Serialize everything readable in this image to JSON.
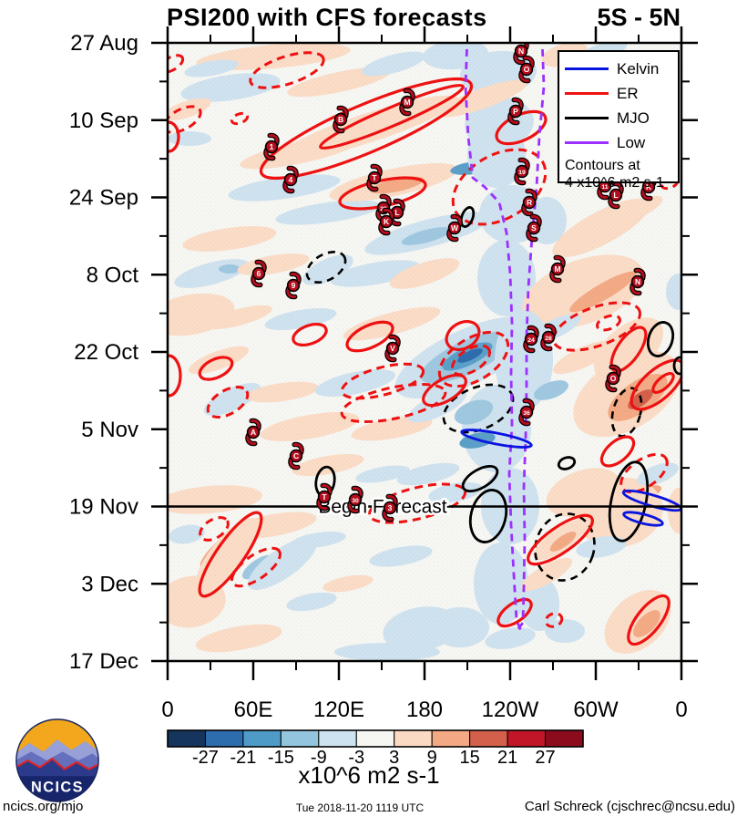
{
  "title": "PSI200 with CFS forecasts",
  "subtitle": "5S - 5N",
  "legend": {
    "items": [
      {
        "label": "Kelvin",
        "color": "#0a14e0"
      },
      {
        "label": "ER",
        "color": "#ee1111"
      },
      {
        "label": "MJO",
        "color": "#000000"
      },
      {
        "label": "Low",
        "color": "#9b30ff"
      }
    ],
    "note_line1": "Contours at",
    "note_line2": "4 x10^6 m2 s-1"
  },
  "footer": {
    "left": "ncics.org/mjo",
    "center": "Tue 2018-11-20 1119 UTC",
    "right": "Carl Schreck (cjschrec@ncsu.edu)"
  },
  "logo": {
    "text": "NCICS"
  },
  "chart_data": {
    "type": "heatmap",
    "title": "PSI200 with CFS forecasts",
    "subtitle": "5S - 5N",
    "description": "Hovmoller (time-longitude) diagram of 200-hPa streamfunction anomalies averaged 5S-5N, with CFS forecasts below the Begin Forecast line and wave/contour overlays",
    "x_axis": {
      "labels": [
        "0",
        "60E",
        "120E",
        "180",
        "120W",
        "60W",
        "0"
      ],
      "minor_tick_deg": 30
    },
    "y_axis": {
      "labels": [
        "27 Aug",
        "10 Sep",
        "24 Sep",
        "8 Oct",
        "22 Oct",
        "5 Nov",
        "19 Nov",
        "3 Dec",
        "17 Dec"
      ],
      "minor_tick_days": 7
    },
    "colorbar": {
      "tick_labels": [
        "-27",
        "-21",
        "-15",
        "-9",
        "-3",
        "3",
        "9",
        "15",
        "21",
        "27"
      ],
      "units": "x10^6 m2 s-1",
      "colors": [
        "#16355e",
        "#2d6cad",
        "#4f9bc7",
        "#93c6de",
        "#cde3f0",
        "#f6f6f3",
        "#fbdac3",
        "#f3a983",
        "#d2604b",
        "#c11627",
        "#8c0c1e"
      ]
    },
    "styles": {
      "kelvin": "#0a14e0",
      "er": "#ee1111",
      "mjo": "#000000",
      "low": "#9b30ff",
      "cyclone_fill": "#b50d1d",
      "background": "#f6f6f3",
      "contour_note": "Contours at 4 x10^6 m2 s-1"
    },
    "palette": {
      "-4": "#2d6cad",
      "-3": "#5b9fc9",
      "-2": "#9fc8e0",
      "-1": "#cfe2ef",
      "1": "#fbdcc6",
      "2": "#f3aa85",
      "3": "#d2604b",
      "4": "#c11627"
    },
    "annotations": {
      "begin_forecast": {
        "label": "Begin Forecast",
        "date": "19 Nov"
      }
    },
    "shaded_blobs": [
      [
        300,
        62,
        85,
        13,
        -5,
        1
      ],
      [
        253,
        96,
        55,
        14,
        -8,
        -1
      ],
      [
        372,
        90,
        58,
        11,
        -12,
        1
      ],
      [
        432,
        70,
        36,
        10,
        -15,
        -1
      ],
      [
        500,
        60,
        36,
        16,
        -5,
        -1
      ],
      [
        547,
        80,
        42,
        24,
        -5,
        -1
      ],
      [
        548,
        135,
        38,
        28,
        -8,
        -1
      ],
      [
        620,
        60,
        26,
        12,
        -15,
        1
      ],
      [
        660,
        58,
        30,
        10,
        -20,
        -1
      ],
      [
        205,
        120,
        28,
        9,
        -18,
        1
      ],
      [
        208,
        152,
        24,
        8,
        0,
        -1
      ],
      [
        405,
        140,
        103,
        16,
        -18,
        1
      ],
      [
        530,
        108,
        52,
        11,
        -20,
        1
      ],
      [
        232,
        75,
        30,
        8,
        -10,
        -1
      ],
      [
        330,
        167,
        68,
        12,
        -12,
        1
      ],
      [
        312,
        206,
        62,
        12,
        -8,
        -1
      ],
      [
        360,
        233,
        58,
        11,
        -8,
        -1
      ],
      [
        432,
        200,
        72,
        15,
        -12,
        1
      ],
      [
        436,
        203,
        30,
        7,
        -12,
        2
      ],
      [
        470,
        256,
        72,
        15,
        -15,
        -1
      ],
      [
        468,
        259,
        28,
        7,
        -15,
        -2
      ],
      [
        252,
        262,
        52,
        12,
        -8,
        1
      ],
      [
        520,
        184,
        26,
        7,
        -8,
        -3
      ],
      [
        545,
        170,
        32,
        36,
        0,
        -1
      ],
      [
        562,
        235,
        36,
        32,
        0,
        -1
      ],
      [
        600,
        242,
        22,
        26,
        0,
        -1
      ],
      [
        660,
        250,
        60,
        18,
        -28,
        1
      ],
      [
        700,
        230,
        30,
        9,
        -25,
        1
      ],
      [
        232,
        300,
        42,
        12,
        -15,
        -1
      ],
      [
        252,
        295,
        12,
        5,
        0,
        -2
      ],
      [
        300,
        290,
        40,
        10,
        -10,
        1
      ],
      [
        360,
        296,
        30,
        12,
        -25,
        -1
      ],
      [
        412,
        300,
        50,
        12,
        -10,
        -1
      ],
      [
        466,
        300,
        40,
        12,
        -18,
        1
      ],
      [
        556,
        305,
        32,
        42,
        0,
        -1
      ],
      [
        640,
        320,
        70,
        35,
        -20,
        1
      ],
      [
        662,
        320,
        42,
        9,
        -30,
        2
      ],
      [
        610,
        360,
        30,
        10,
        -25,
        -1
      ],
      [
        210,
        345,
        48,
        22,
        -10,
        1
      ],
      [
        262,
        348,
        38,
        9,
        -15,
        1
      ],
      [
        330,
        350,
        40,
        10,
        -10,
        -1
      ],
      [
        430,
        355,
        55,
        12,
        -15,
        1
      ],
      [
        512,
        392,
        85,
        30,
        -25,
        -1
      ],
      [
        512,
        392,
        55,
        18,
        -25,
        -2
      ],
      [
        513,
        391,
        30,
        10,
        -25,
        -3
      ],
      [
        516,
        390,
        15,
        5,
        -25,
        -4
      ],
      [
        575,
        395,
        32,
        55,
        0,
        -1
      ],
      [
        690,
        383,
        45,
        25,
        -40,
        1
      ],
      [
        240,
        395,
        35,
        10,
        -20,
        1
      ],
      [
        255,
        438,
        34,
        12,
        -25,
        -1
      ],
      [
        310,
        430,
        40,
        10,
        -8,
        1
      ],
      [
        390,
        420,
        45,
        12,
        -12,
        -1
      ],
      [
        340,
        468,
        55,
        13,
        -10,
        1
      ],
      [
        430,
        470,
        45,
        11,
        -10,
        1
      ],
      [
        480,
        445,
        35,
        12,
        -25,
        -1
      ],
      [
        545,
        470,
        38,
        48,
        0,
        -1
      ],
      [
        524,
        483,
        20,
        8,
        -12,
        -3
      ],
      [
        520,
        452,
        22,
        12,
        -20,
        -2
      ],
      [
        605,
        428,
        20,
        9,
        -20,
        -2
      ],
      [
        688,
        432,
        65,
        38,
        -32,
        1
      ],
      [
        700,
        436,
        38,
        17,
        -35,
        2
      ],
      [
        703,
        438,
        16,
        7,
        -35,
        3
      ],
      [
        640,
        392,
        36,
        11,
        -25,
        1
      ],
      [
        745,
        320,
        14,
        20,
        0,
        -1
      ],
      [
        230,
        548,
        58,
        15,
        -5,
        1
      ],
      [
        300,
        576,
        48,
        12,
        -10,
        1
      ],
      [
        360,
        510,
        40,
        10,
        -10,
        1
      ],
      [
        420,
        520,
        30,
        8,
        -10,
        -1
      ],
      [
        470,
        520,
        35,
        10,
        -12,
        -1
      ],
      [
        560,
        555,
        32,
        42,
        0,
        -1
      ],
      [
        640,
        540,
        42,
        24,
        -20,
        1
      ],
      [
        700,
        545,
        28,
        8,
        -22,
        2
      ],
      [
        680,
        562,
        48,
        38,
        -12,
        1
      ],
      [
        722,
        520,
        24,
        10,
        -20,
        -1
      ],
      [
        745,
        560,
        12,
        25,
        0,
        1
      ],
      [
        500,
        540,
        30,
        10,
        -10,
        -1
      ],
      [
        245,
        600,
        33,
        9,
        -42,
        2
      ],
      [
        250,
        608,
        50,
        18,
        -50,
        1
      ],
      [
        283,
        622,
        20,
        8,
        -35,
        -2
      ],
      [
        310,
        618,
        45,
        16,
        -35,
        -1
      ],
      [
        205,
        586,
        20,
        10,
        -10,
        -1
      ],
      [
        210,
        660,
        38,
        28,
        -10,
        1
      ],
      [
        262,
        700,
        48,
        13,
        -10,
        1
      ],
      [
        342,
        660,
        28,
        9,
        -10,
        -1
      ],
      [
        462,
        690,
        42,
        24,
        -10,
        -1
      ],
      [
        425,
        715,
        58,
        10,
        0,
        -1
      ],
      [
        550,
        640,
        30,
        45,
        0,
        -1
      ],
      [
        592,
        662,
        22,
        30,
        0,
        -1
      ],
      [
        615,
        592,
        35,
        12,
        -35,
        1
      ],
      [
        618,
        594,
        17,
        6,
        -35,
        2
      ],
      [
        600,
        630,
        32,
        10,
        -30,
        1
      ],
      [
        660,
        600,
        28,
        11,
        -10,
        -1
      ],
      [
        700,
        682,
        42,
        28,
        -42,
        1
      ],
      [
        710,
        684,
        19,
        9,
        -45,
        2
      ],
      [
        560,
        700,
        28,
        11,
        -10,
        -1
      ],
      [
        505,
        688,
        32,
        22,
        0,
        -1
      ],
      [
        620,
        692,
        22,
        13,
        0,
        -1
      ],
      [
        382,
        640,
        28,
        8,
        -10,
        1
      ],
      [
        440,
        610,
        35,
        10,
        -10,
        -1
      ],
      [
        350,
        592,
        30,
        8,
        -8,
        -1
      ]
    ],
    "er_solid_ellipses": [
      [
        402,
        141,
        125,
        26,
        -23
      ],
      [
        430,
        128,
        85,
        10,
        -23
      ],
      [
        572,
        140,
        29,
        14,
        -25
      ],
      [
        420,
        212,
        48,
        14,
        -12
      ],
      [
        237,
        404,
        19,
        10,
        -25
      ],
      [
        508,
        368,
        19,
        14,
        -30
      ],
      [
        406,
        369,
        27,
        12,
        -25
      ],
      [
        253,
        608,
        55,
        15,
        -55
      ],
      [
        565,
        672,
        21,
        10,
        -35
      ],
      [
        712,
        680,
        32,
        13,
        -52
      ],
      [
        678,
        495,
        21,
        11,
        -40
      ],
      [
        615,
        592,
        42,
        14,
        -35
      ],
      [
        690,
        383,
        28,
        12,
        -55
      ],
      [
        722,
        422,
        36,
        16,
        -42
      ],
      [
        728,
        420,
        14,
        6,
        -42
      ],
      [
        340,
        367,
        19,
        10,
        -20
      ],
      [
        488,
        428,
        26,
        12,
        -30
      ],
      [
        185,
        412,
        13,
        22,
        0
      ],
      [
        185,
        150,
        11,
        16,
        0
      ]
    ],
    "er_dashed_ellipses": [
      [
        315,
        77,
        42,
        15,
        -18
      ],
      [
        200,
        131,
        22,
        11,
        -28
      ],
      [
        263,
        130,
        9,
        5,
        -20
      ],
      [
        250,
        441,
        24,
        13,
        -30
      ],
      [
        420,
        418,
        46,
        15,
        -15
      ],
      [
        432,
        442,
        58,
        17,
        -12
      ],
      [
        520,
        394,
        42,
        23,
        -32
      ],
      [
        517,
        395,
        23,
        12,
        -32
      ],
      [
        548,
        205,
        55,
        35,
        -30
      ],
      [
        655,
        358,
        50,
        21,
        -20
      ],
      [
        668,
        354,
        13,
        7,
        -20
      ],
      [
        458,
        552,
        54,
        17,
        -14
      ],
      [
        235,
        580,
        17,
        10,
        -32
      ],
      [
        281,
        622,
        31,
        13,
        -35
      ],
      [
        707,
        519,
        29,
        15,
        -35
      ],
      [
        608,
        680,
        9,
        7,
        -20
      ],
      [
        735,
        201,
        9,
        5,
        -20
      ],
      [
        188,
        70,
        14,
        7,
        -30
      ]
    ],
    "mjo_solid_ellipses": [
      [
        513,
        238,
        6,
        11,
        20
      ],
      [
        527,
        525,
        21,
        10,
        -30
      ],
      [
        536,
        566,
        19,
        29,
        14
      ],
      [
        690,
        550,
        19,
        44,
        12
      ],
      [
        357,
        528,
        10,
        16,
        10
      ],
      [
        622,
        508,
        9,
        6,
        -20
      ],
      [
        725,
        372,
        13,
        19,
        18
      ],
      [
        746,
        401,
        6,
        9,
        0
      ]
    ],
    "mjo_dashed_ellipses": [
      [
        358,
        293,
        23,
        14,
        -30
      ],
      [
        525,
        448,
        40,
        23,
        -22
      ],
      [
        620,
        600,
        32,
        37,
        18
      ],
      [
        688,
        452,
        15,
        27,
        15
      ]
    ],
    "kelvin_outlines": [
      [
        545,
        481,
        39,
        6,
        11
      ],
      [
        716,
        549,
        33,
        6,
        16
      ],
      [
        706,
        569,
        22,
        5,
        14
      ]
    ],
    "low_paths": [
      "513,40 511,95 514,150 519,195 532,205 548,222 556,255 560,300 562,355 561,410 562,465 559,520 561,575 564,630 567,680 573,695",
      "595,40 597,95 592,150 589,205 584,260 580,315 578,370 578,425 577,480 575,535 576,590 575,645 574,683 567,692"
    ],
    "cyclones": [
      [
        298,
        161,
        "1"
      ],
      [
        319,
        197,
        "4"
      ],
      [
        374,
        131,
        "B"
      ],
      [
        447,
        112,
        "M"
      ],
      [
        411,
        195,
        "T"
      ],
      [
        421,
        228,
        "29"
      ],
      [
        436,
        233,
        "L"
      ],
      [
        424,
        243,
        "K"
      ],
      [
        284,
        300,
        "6"
      ],
      [
        322,
        313,
        "9"
      ],
      [
        572,
        56,
        "N"
      ],
      [
        578,
        76,
        "O"
      ],
      [
        566,
        122,
        "P"
      ],
      [
        573,
        188,
        "19"
      ],
      [
        581,
        222,
        "R"
      ],
      [
        586,
        250,
        "S"
      ],
      [
        499,
        250,
        "W"
      ],
      [
        612,
        295,
        "M"
      ],
      [
        664,
        204,
        "11"
      ],
      [
        676,
        214,
        "L"
      ],
      [
        712,
        205,
        "K"
      ],
      [
        431,
        382,
        "V"
      ],
      [
        583,
        372,
        "24"
      ],
      [
        602,
        370,
        "28"
      ],
      [
        578,
        452,
        "36"
      ],
      [
        700,
        309,
        "N"
      ],
      [
        673,
        415,
        "O"
      ],
      [
        278,
        474,
        "A"
      ],
      [
        325,
        500,
        "C"
      ],
      [
        356,
        545,
        "T"
      ],
      [
        390,
        548,
        "30"
      ],
      [
        428,
        557,
        "3"
      ]
    ]
  }
}
